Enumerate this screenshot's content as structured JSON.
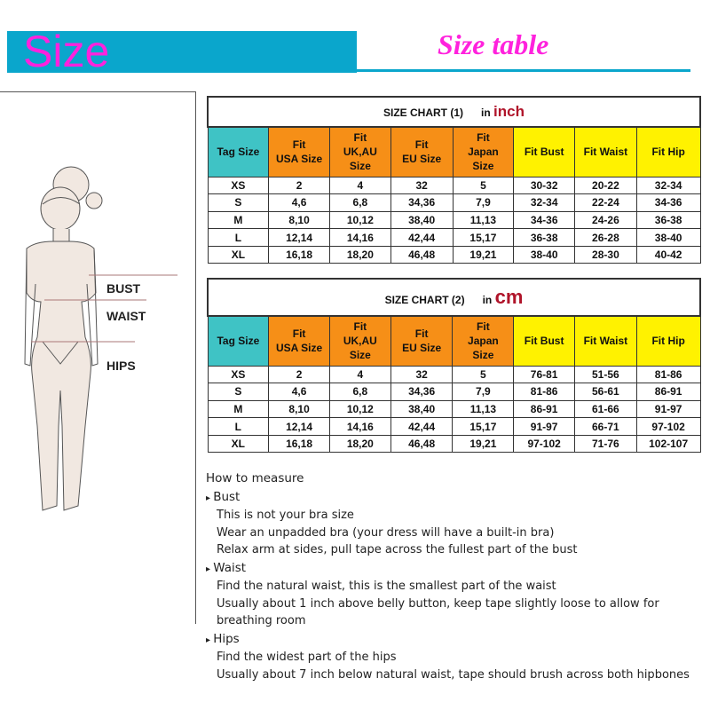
{
  "banner": {
    "title": "Size",
    "subtitle": "Size table",
    "accent": "#0aa6cc",
    "title_color": "#ff22dd"
  },
  "figure": {
    "labels": [
      "BUST",
      "WAIST",
      "HIPS"
    ]
  },
  "columns": [
    "Tag Size",
    "Fit USA Size",
    "Fit UK,AU Size",
    "Fit EU Size",
    "Fit Japan Size",
    "Fit Bust",
    "Fit Waist",
    "Fit Hip"
  ],
  "columns_lines": [
    [
      "Tag Size"
    ],
    [
      "Fit",
      "USA Size"
    ],
    [
      "Fit",
      "UK,AU",
      "Size"
    ],
    [
      "Fit",
      "EU Size"
    ],
    [
      "Fit",
      "Japan",
      "Size"
    ],
    [
      "Fit Bust"
    ],
    [
      "Fit Waist"
    ],
    [
      "Fit Hip"
    ]
  ],
  "chart1": {
    "title": "SIZE CHART (1)",
    "unit_prefix": "in",
    "unit": "inch",
    "rows": [
      [
        "XS",
        "2",
        "4",
        "32",
        "5",
        "30-32",
        "20-22",
        "32-34"
      ],
      [
        "S",
        "4,6",
        "6,8",
        "34,36",
        "7,9",
        "32-34",
        "22-24",
        "34-36"
      ],
      [
        "M",
        "8,10",
        "10,12",
        "38,40",
        "11,13",
        "34-36",
        "24-26",
        "36-38"
      ],
      [
        "L",
        "12,14",
        "14,16",
        "42,44",
        "15,17",
        "36-38",
        "26-28",
        "38-40"
      ],
      [
        "XL",
        "16,18",
        "18,20",
        "46,48",
        "19,21",
        "38-40",
        "28-30",
        "40-42"
      ]
    ]
  },
  "chart2": {
    "title": "SIZE CHART (2)",
    "unit_prefix": "in",
    "unit": "cm",
    "rows": [
      [
        "XS",
        "2",
        "4",
        "32",
        "5",
        "76-81",
        "51-56",
        "81-86"
      ],
      [
        "S",
        "4,6",
        "6,8",
        "34,36",
        "7,9",
        "81-86",
        "56-61",
        "86-91"
      ],
      [
        "M",
        "8,10",
        "10,12",
        "38,40",
        "11,13",
        "86-91",
        "61-66",
        "91-97"
      ],
      [
        "L",
        "12,14",
        "14,16",
        "42,44",
        "15,17",
        "91-97",
        "66-71",
        "97-102"
      ],
      [
        "XL",
        "16,18",
        "18,20",
        "46,48",
        "19,21",
        "97-102",
        "71-76",
        "102-107"
      ]
    ]
  },
  "measure": {
    "heading": "How to measure",
    "sections": [
      {
        "name": "Bust",
        "lines": [
          "This is not your bra size",
          "Wear an unpadded bra (your dress will have a built-in bra)",
          "Relax arm at sides, pull tape across the fullest part of the bust"
        ]
      },
      {
        "name": "Waist",
        "lines": [
          "Find the natural waist, this is the smallest part of the waist",
          "Usually about 1 inch above belly button, keep tape slightly loose to allow for breathing room"
        ]
      },
      {
        "name": "Hips",
        "lines": [
          "Find the widest part of the hips",
          "Usually about 7 inch below natural waist, tape should brush across both hipbones"
        ]
      }
    ]
  }
}
